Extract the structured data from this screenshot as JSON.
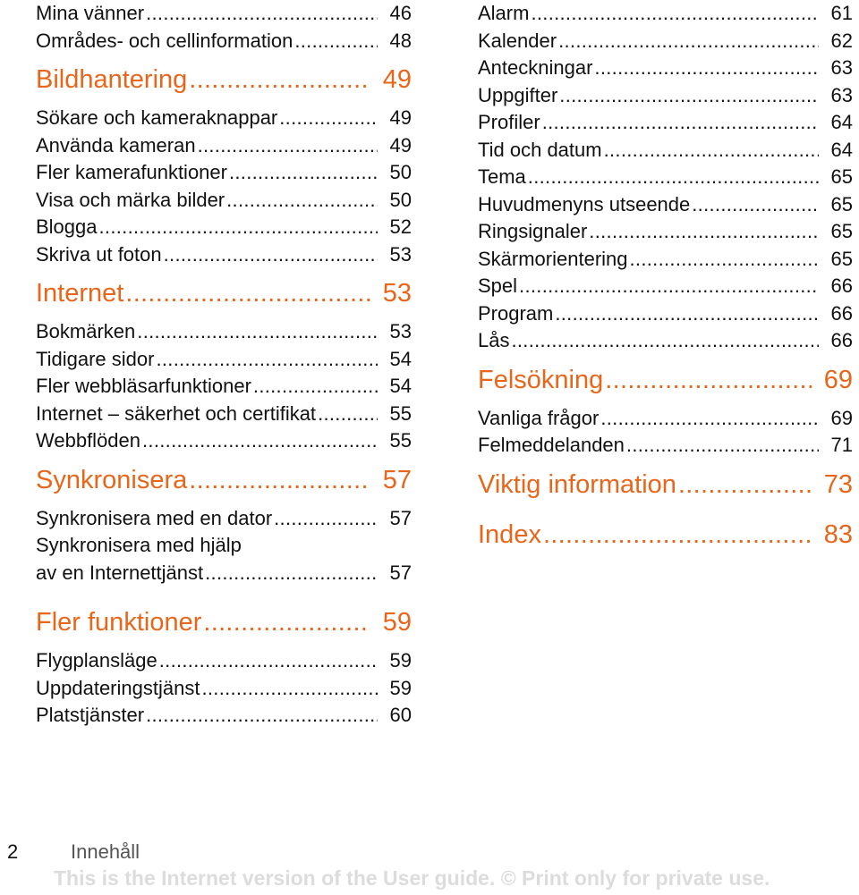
{
  "columns": [
    [
      {
        "t": "entry",
        "label": "Mina vänner",
        "page": "46"
      },
      {
        "t": "entry",
        "label": "Områdes- och cellinformation",
        "page": "48"
      },
      {
        "t": "head",
        "label": "Bildhantering",
        "page": "49"
      },
      {
        "t": "entry",
        "label": "Sökare och kameraknappar",
        "page": "49"
      },
      {
        "t": "entry",
        "label": "Använda kameran",
        "page": "49"
      },
      {
        "t": "entry",
        "label": "Fler kamerafunktioner",
        "page": "50"
      },
      {
        "t": "entry",
        "label": "Visa och märka bilder",
        "page": "50"
      },
      {
        "t": "entry",
        "label": "Blogga",
        "page": "52"
      },
      {
        "t": "entry",
        "label": "Skriva ut foton",
        "page": "53"
      },
      {
        "t": "head",
        "label": "Internet",
        "page": "53"
      },
      {
        "t": "entry",
        "label": "Bokmärken",
        "page": "53"
      },
      {
        "t": "entry",
        "label": "Tidigare sidor",
        "page": "54"
      },
      {
        "t": "entry",
        "label": "Fler webbläsarfunktioner",
        "page": "54"
      },
      {
        "t": "entry",
        "label": "Internet – säkerhet och certifikat",
        "page": "55"
      },
      {
        "t": "entry",
        "label": "Webbflöden",
        "page": "55"
      },
      {
        "t": "head",
        "label": "Synkronisera",
        "page": "57"
      },
      {
        "t": "entry",
        "label": "Synkronisera med en dator",
        "page": "57"
      },
      {
        "t": "cont",
        "label": "Synkronisera med hjälp"
      },
      {
        "t": "entry",
        "label": "av en Internettjänst",
        "page": "57"
      },
      {
        "t": "gap"
      },
      {
        "t": "head",
        "label": "Fler funktioner",
        "page": "59"
      },
      {
        "t": "entry",
        "label": "Flygplansläge",
        "page": "59"
      },
      {
        "t": "entry",
        "label": "Uppdateringstjänst",
        "page": "59"
      },
      {
        "t": "entry",
        "label": "Platstjänster",
        "page": "60"
      }
    ],
    [
      {
        "t": "entry",
        "label": "Alarm",
        "page": "61"
      },
      {
        "t": "entry",
        "label": "Kalender",
        "page": "62"
      },
      {
        "t": "entry",
        "label": "Anteckningar",
        "page": "63"
      },
      {
        "t": "entry",
        "label": "Uppgifter",
        "page": "63"
      },
      {
        "t": "entry",
        "label": "Profiler",
        "page": "64"
      },
      {
        "t": "entry",
        "label": "Tid och datum",
        "page": "64"
      },
      {
        "t": "entry",
        "label": "Tema",
        "page": "65"
      },
      {
        "t": "entry",
        "label": "Huvudmenyns utseende",
        "page": "65"
      },
      {
        "t": "entry",
        "label": "Ringsignaler",
        "page": "65"
      },
      {
        "t": "entry",
        "label": "Skärmorientering",
        "page": "65"
      },
      {
        "t": "entry",
        "label": "Spel",
        "page": "66"
      },
      {
        "t": "entry",
        "label": "Program",
        "page": "66"
      },
      {
        "t": "entry",
        "label": "Lås",
        "page": "66"
      },
      {
        "t": "head",
        "label": "Felsökning",
        "page": "69"
      },
      {
        "t": "entry",
        "label": "Vanliga frågor",
        "page": "69"
      },
      {
        "t": "entry",
        "label": "Felmeddelanden",
        "page": "71"
      },
      {
        "t": "head",
        "label": "Viktig information",
        "page": "73"
      },
      {
        "t": "head",
        "label": "Index",
        "page": "83"
      }
    ]
  ],
  "footer": {
    "page_number": "2",
    "section": "Innehåll",
    "notice": "This is the Internet version of the User guide. © Print only for private use."
  },
  "colors": {
    "heading": "#e8661a",
    "text": "#111111",
    "notice": "#dcdcdc"
  }
}
